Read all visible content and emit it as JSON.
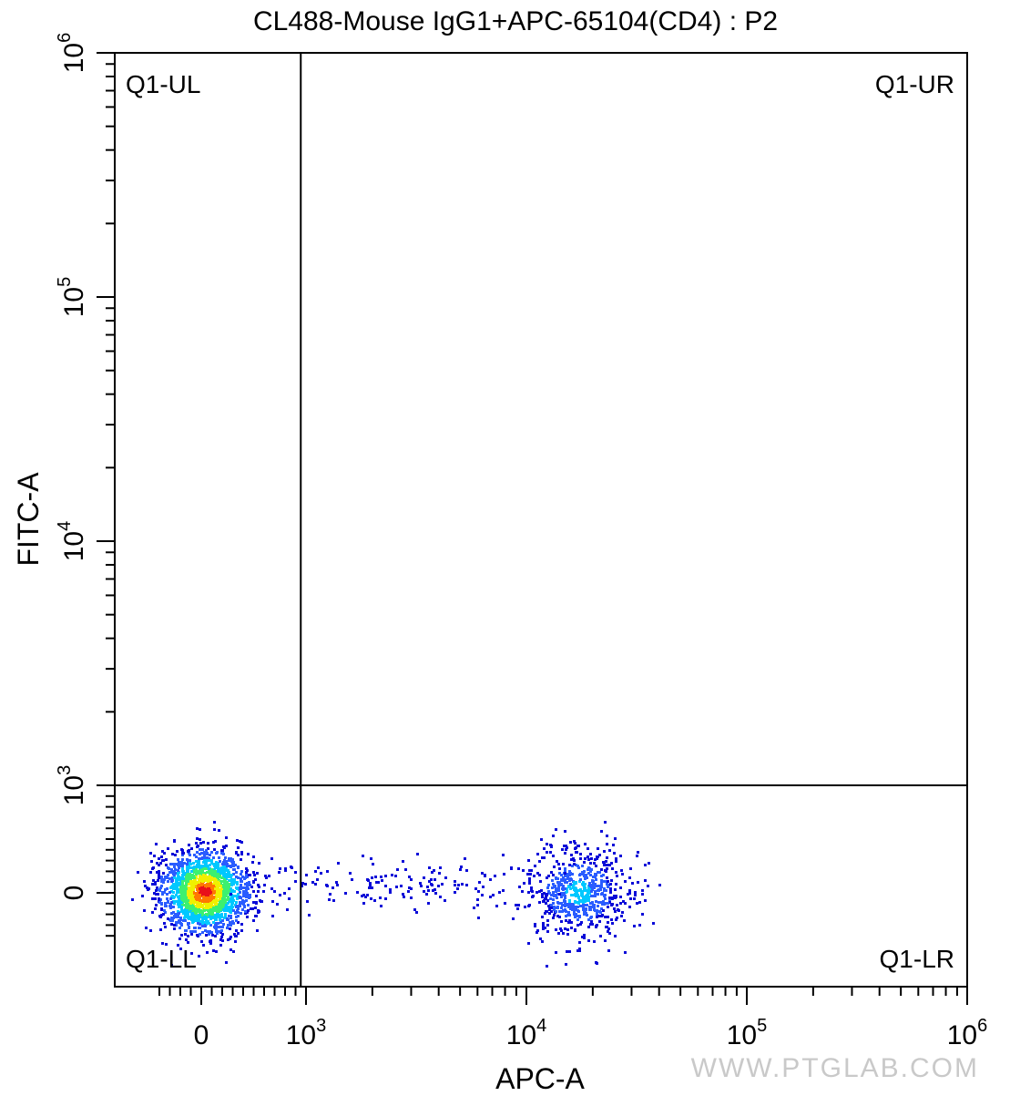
{
  "chart_data": {
    "type": "scatter",
    "plot_kind": "flow cytometry density dot plot (pseudocolor)",
    "title": "CL488-Mouse IgG1+APC-65104(CD4) : P2",
    "xlabel": "APC-A",
    "ylabel": "FITC-A",
    "x_scale": "biexponential (linear near 0, log above 10^3)",
    "y_scale": "biexponential (linear near 0, log above 10^3)",
    "xlim": [
      -500,
      1000000
    ],
    "ylim": [
      -500,
      1000000
    ],
    "x_ticks": [
      {
        "value": 0,
        "base": "0",
        "exp": ""
      },
      {
        "value": 1000,
        "base": "10",
        "exp": "3"
      },
      {
        "value": 10000,
        "base": "10",
        "exp": "4"
      },
      {
        "value": 100000,
        "base": "10",
        "exp": "5"
      },
      {
        "value": 1000000,
        "base": "10",
        "exp": "6"
      }
    ],
    "y_ticks": [
      {
        "value": 0,
        "base": "0",
        "exp": ""
      },
      {
        "value": 1000,
        "base": "10",
        "exp": "3"
      },
      {
        "value": 10000,
        "base": "10",
        "exp": "4"
      },
      {
        "value": 100000,
        "base": "10",
        "exp": "5"
      },
      {
        "value": 1000000,
        "base": "10",
        "exp": "6"
      }
    ],
    "gates": {
      "x_threshold": 950,
      "y_threshold": 1000,
      "quadrants": {
        "upper_left": "Q1-UL",
        "upper_right": "Q1-UR",
        "lower_left": "Q1-LL",
        "lower_right": "Q1-LR"
      }
    },
    "populations": [
      {
        "center_x": 20,
        "center_y": 20,
        "spread_x": 220,
        "spread_y": 200,
        "relative_events": 0.68,
        "peak_density": "high (red core)"
      },
      {
        "center_x": 17000,
        "center_y": 10,
        "spread_x_log10": 0.12,
        "spread_y": 220,
        "relative_events": 0.26,
        "peak_density": "medium (cyan core)"
      },
      {
        "center_x": 2500,
        "center_y": 80,
        "spread_x_log10": 0.35,
        "spread_y": 120,
        "relative_events": 0.06,
        "peak_density": "low (blue)"
      }
    ],
    "density_colors": [
      "#0a0ad8",
      "#2a5cff",
      "#00c8ff",
      "#3cf070",
      "#f0f000",
      "#ff7800",
      "#e8101a"
    ],
    "grid": false,
    "legend": "none"
  },
  "watermark": "WWW.PTGLAB.COM"
}
